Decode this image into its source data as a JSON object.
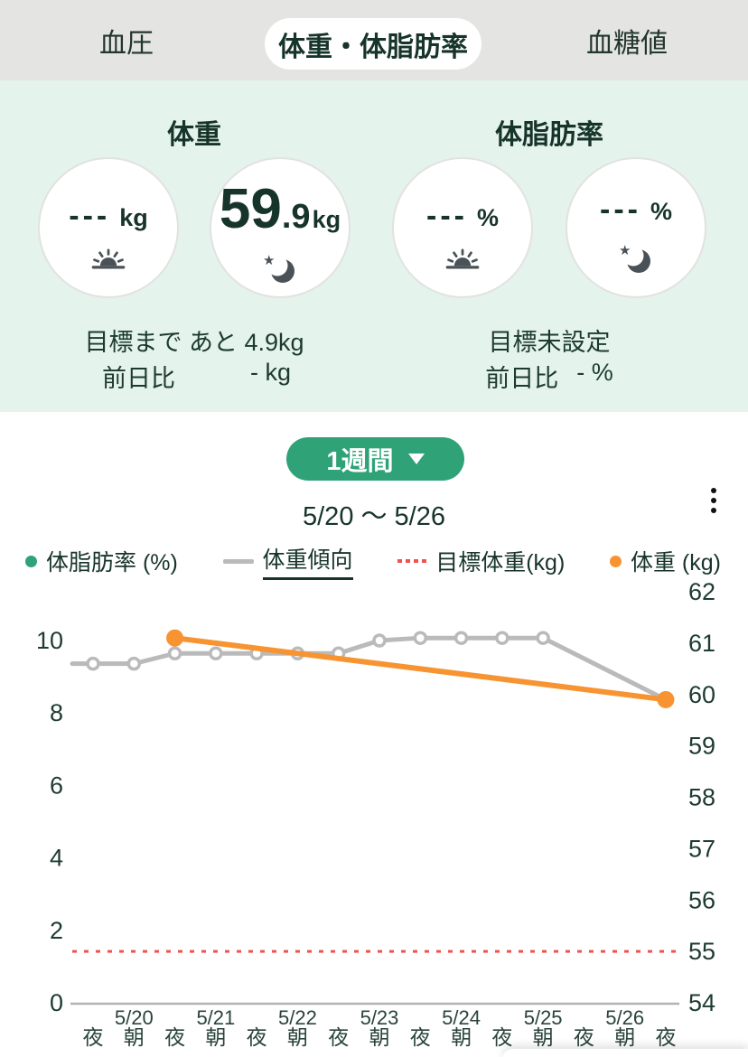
{
  "tabs": {
    "blood_pressure": "血圧",
    "weight_bodyfat": "体重・体脂肪率",
    "blood_glucose": "血糖値"
  },
  "summary": {
    "weight": {
      "title": "体重",
      "morning_value": "---",
      "morning_unit": "kg",
      "night_value_main": "59",
      "night_value_dec": ".9",
      "night_unit": "kg",
      "goal_text": "目標まで あと 4.9kg",
      "prev_label": "前日比",
      "prev_value": "- kg"
    },
    "body_fat": {
      "title": "体脂肪率",
      "morning_value": "---",
      "morning_unit": "%",
      "night_value": "---",
      "night_unit": "%",
      "goal_text": "目標未設定",
      "prev_label": "前日比",
      "prev_value": "- %"
    }
  },
  "period": {
    "button_label": "1週間",
    "range_text": "5/20 〜 5/26"
  },
  "legend": {
    "items": [
      {
        "label": "体脂肪率 (%)",
        "marker": "dot",
        "color": "#2fa277",
        "underlined": false
      },
      {
        "label": "体重傾向",
        "marker": "line",
        "color": "#bababa",
        "underlined": true
      },
      {
        "label": "目標体重(kg)",
        "marker": "dotted-line",
        "color": "#ef5350",
        "underlined": false
      },
      {
        "label": "体重 (kg)",
        "marker": "dot",
        "color": "#f79431",
        "underlined": false
      }
    ]
  },
  "chart_data": {
    "type": "line",
    "title": "体重・体脂肪率 1週間グラフ",
    "range_label": "5/20 〜 5/26",
    "left_axis": {
      "label": "体脂肪率 (%)",
      "ticks": [
        10,
        8,
        6,
        4,
        2,
        0
      ],
      "range": [
        0,
        10
      ]
    },
    "right_axis": {
      "label": "体重 (kg)",
      "ticks": [
        62,
        61,
        60,
        59,
        58,
        57,
        56,
        55,
        54
      ],
      "range": [
        54,
        62
      ]
    },
    "x_ticks": [
      {
        "time": "夜",
        "date": ""
      },
      {
        "time": "朝",
        "date": "5/20"
      },
      {
        "time": "夜",
        "date": ""
      },
      {
        "time": "朝",
        "date": "5/21"
      },
      {
        "time": "夜",
        "date": ""
      },
      {
        "time": "朝",
        "date": "5/22"
      },
      {
        "time": "夜",
        "date": ""
      },
      {
        "time": "朝",
        "date": "5/23"
      },
      {
        "time": "夜",
        "date": ""
      },
      {
        "time": "朝",
        "date": "5/24"
      },
      {
        "time": "夜",
        "date": ""
      },
      {
        "time": "朝",
        "date": "5/25"
      },
      {
        "time": "夜",
        "date": ""
      },
      {
        "time": "朝",
        "date": "5/26"
      },
      {
        "time": "夜",
        "date": ""
      }
    ],
    "series": [
      {
        "name": "目標体重",
        "axis": "right",
        "style": "dotted",
        "color": "#ef5350",
        "constant_value": 55
      },
      {
        "name": "体重傾向",
        "axis": "right",
        "style": "solid-markers",
        "color": "#bababa",
        "lead_in_from_left_edge": true,
        "values": [
          60.6,
          60.6,
          60.8,
          60.8,
          60.8,
          60.8,
          60.8,
          61.05,
          61.1,
          61.1,
          61.1,
          61.1,
          null,
          null,
          59.9
        ]
      },
      {
        "name": "体重",
        "axis": "right",
        "style": "solid-dots",
        "color": "#f79431",
        "values": [
          null,
          null,
          61.1,
          null,
          null,
          null,
          null,
          null,
          null,
          null,
          null,
          null,
          null,
          null,
          59.9
        ]
      }
    ],
    "series_no_data": [
      {
        "name": "体脂肪率",
        "axis": "left"
      }
    ],
    "grid": false,
    "legend_position": "top"
  }
}
